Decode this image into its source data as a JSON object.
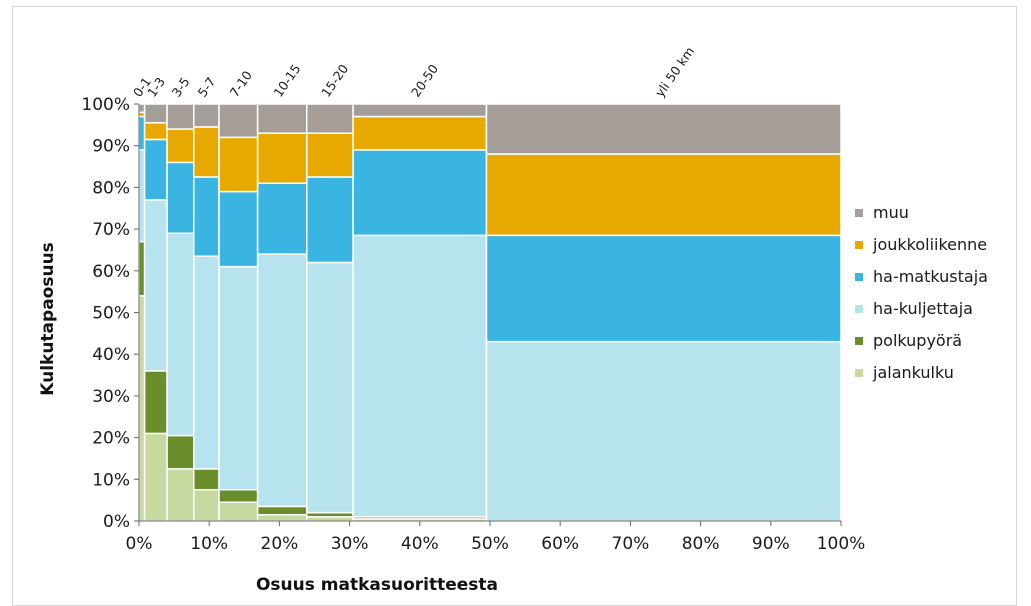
{
  "chart_data": {
    "type": "bar",
    "subtype": "marimekko-stacked-100",
    "xlabel": "Osuus matkasuoritteesta",
    "ylabel": "Kulkutapaosuus",
    "xlim": [
      0,
      100
    ],
    "ylim": [
      0,
      100
    ],
    "x_ticks": [
      "0%",
      "10%",
      "20%",
      "30%",
      "40%",
      "50%",
      "60%",
      "70%",
      "80%",
      "90%",
      "100%"
    ],
    "y_ticks": [
      "0%",
      "10%",
      "20%",
      "30%",
      "40%",
      "50%",
      "60%",
      "70%",
      "80%",
      "90%",
      "100%"
    ],
    "legend_position": "right",
    "categories": [
      "0-1",
      "1-3",
      "3-5",
      "5-7",
      "7-10",
      "10-15",
      "15-20",
      "20-50",
      "yli 50 km"
    ],
    "widths": [
      0.8,
      3.2,
      3.8,
      3.6,
      5.5,
      7.0,
      6.6,
      19.0,
      50.5
    ],
    "series": [
      {
        "name": "jalankulku",
        "color": "#c5d9a0",
        "values": [
          54,
          21,
          12.5,
          7.5,
          4.5,
          1.5,
          1,
          0.5,
          0
        ]
      },
      {
        "name": "polkupyörä",
        "color": "#6a8e2c",
        "values": [
          13,
          15,
          8,
          5,
          3,
          2,
          1,
          0.5,
          0
        ]
      },
      {
        "name": "ha-kuljettaja",
        "color": "#b7e3ee",
        "values": [
          22,
          41,
          48.5,
          51,
          53.5,
          60.5,
          60,
          67.5,
          43
        ]
      },
      {
        "name": "ha-matkustaja",
        "color": "#3ab5e2",
        "values": [
          8,
          14.5,
          17,
          19,
          18,
          17,
          20.5,
          20.5,
          25.5
        ]
      },
      {
        "name": "joukkoliikenne",
        "color": "#e7a900",
        "values": [
          1,
          4,
          8,
          12,
          13,
          12,
          10.5,
          8,
          19.5
        ]
      },
      {
        "name": "muu",
        "color": "#a59d98",
        "values": [
          2,
          4.5,
          6,
          5.5,
          8,
          7,
          7,
          3,
          12
        ]
      }
    ]
  }
}
